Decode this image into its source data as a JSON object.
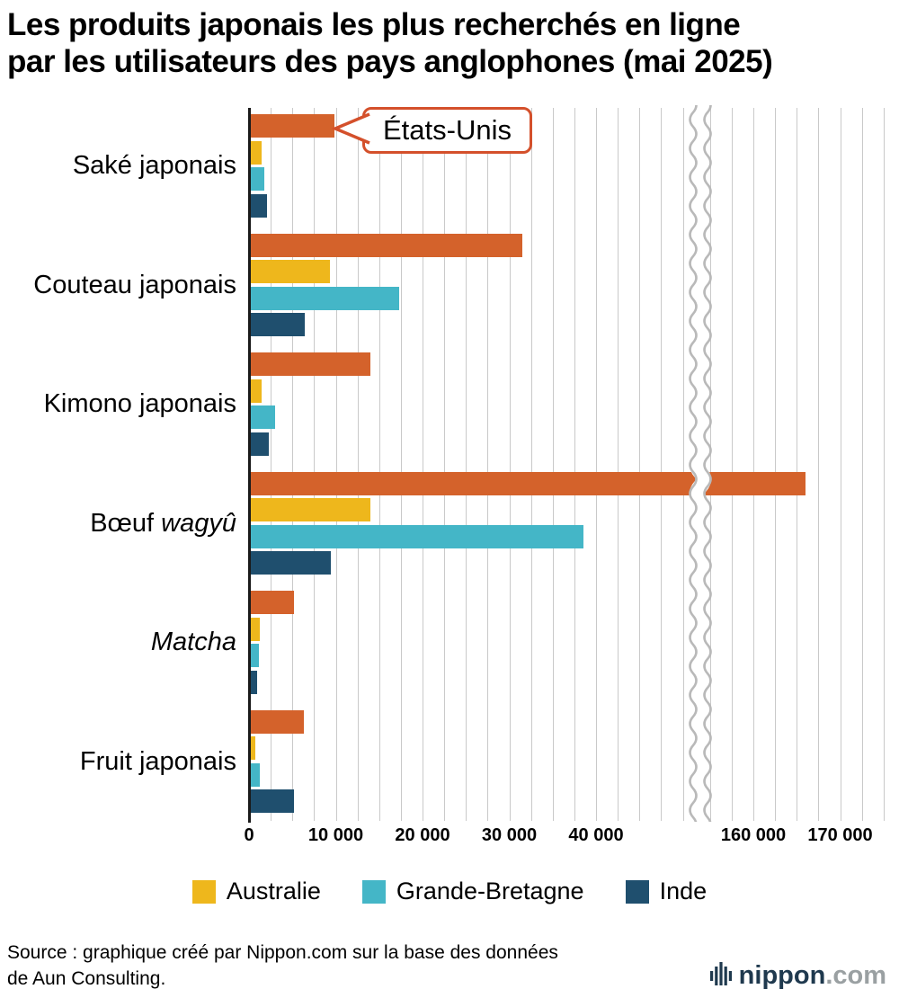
{
  "title": {
    "line1": "Les produits japonais les plus recherchés en ligne",
    "line2": "par les utilisateurs des pays anglophones (mai 2025)"
  },
  "callout": {
    "label": "États-Unis"
  },
  "legend": [
    {
      "label": "Australie",
      "color": "#eeb71c"
    },
    {
      "label": "Grande-Bretagne",
      "color": "#44b6c7"
    },
    {
      "label": "Inde",
      "color": "#1f4f6e"
    }
  ],
  "source": {
    "line1": "Source : graphique créé par Nippon.com sur la base des données",
    "line2": "de Aun Consulting."
  },
  "logo": {
    "name": "nippon",
    "tld": ".com"
  },
  "chart_data": {
    "type": "bar",
    "orientation": "horizontal",
    "title": "Les produits japonais les plus recherchés en ligne par les utilisateurs des pays anglophones (mai 2025)",
    "categories": [
      {
        "text": "Saké japonais",
        "italic": ""
      },
      {
        "text": "Couteau japonais",
        "italic": ""
      },
      {
        "text": "Kimono japonais",
        "italic": ""
      },
      {
        "text": "Bœuf ",
        "italic": "wagyû"
      },
      {
        "text": "",
        "italic": "Matcha"
      },
      {
        "text": "Fruit japonais",
        "italic": ""
      }
    ],
    "series": [
      {
        "name": "États-Unis",
        "color": "#d4622b",
        "values": [
          9800,
          31500,
          14000,
          166000,
          5200,
          6300
        ]
      },
      {
        "name": "Australie",
        "color": "#eeb71c",
        "values": [
          1400,
          9300,
          1400,
          14000,
          1200,
          700
        ]
      },
      {
        "name": "Grande-Bretagne",
        "color": "#44b6c7",
        "values": [
          1800,
          17300,
          3000,
          38500,
          1100,
          1200
        ]
      },
      {
        "name": "Inde",
        "color": "#1f4f6e",
        "values": [
          2100,
          6400,
          2300,
          9400,
          900,
          5200
        ]
      }
    ],
    "x_axis": {
      "ticks": [
        0,
        10000,
        20000,
        30000,
        40000,
        160000,
        170000
      ],
      "tick_labels": [
        "0",
        "10 000",
        "20 000",
        "30 000",
        "40 000",
        "160 000",
        "170 000"
      ],
      "axis_break_between": [
        40000,
        160000
      ],
      "gridlines": true,
      "gridline_interval": 2500
    },
    "annotation": {
      "label": "États-Unis",
      "points_to": "Saké japonais — barre États-Unis"
    },
    "legend_position": "bottom",
    "legend_entries": [
      "Australie",
      "Grande-Bretagne",
      "Inde"
    ]
  }
}
